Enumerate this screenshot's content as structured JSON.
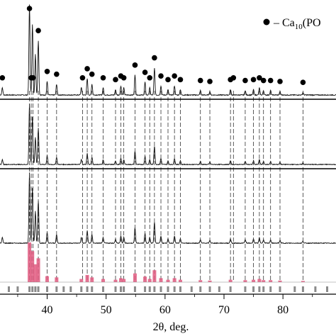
{
  "chart_data": {
    "type": "line",
    "xlabel": "2θ, deg.",
    "xlim": [
      32,
      89
    ],
    "x_ticks": [
      40,
      50,
      60,
      70,
      80
    ],
    "legend": {
      "marker": "●",
      "label": "– Ca",
      "subscript": "10",
      "label_tail": "(PO"
    },
    "peak_positions": [
      37.0,
      37.3,
      37.6,
      38.5,
      40.0,
      41.6,
      46.0,
      46.8,
      47.6,
      49.5,
      51.6,
      52.5,
      53.0,
      54.9,
      56.6,
      57.4,
      58.2,
      59.3,
      60.5,
      61.6,
      62.6,
      66.0,
      67.6,
      71.1,
      71.6,
      73.6,
      75.0,
      76.0,
      76.7,
      77.9,
      79.5,
      83.4
    ],
    "marked_peaks": [
      32.4,
      37.0,
      37.3,
      37.6,
      38.5,
      40.0,
      41.6,
      46.0,
      46.8,
      47.6,
      49.5,
      51.6,
      52.5,
      53.0,
      54.9,
      56.6,
      57.4,
      58.2,
      59.3,
      60.5,
      61.6,
      62.6,
      66.0,
      67.6,
      71.1,
      71.6,
      73.6,
      75.0,
      76.0,
      76.7,
      77.9,
      79.5,
      83.4
    ],
    "reference_bars": [
      {
        "x": 37.0,
        "h": 1.0
      },
      {
        "x": 37.5,
        "h": 0.78
      },
      {
        "x": 38.0,
        "h": 0.45
      },
      {
        "x": 38.5,
        "h": 0.6
      },
      {
        "x": 40.0,
        "h": 0.15
      },
      {
        "x": 41.6,
        "h": 0.12
      },
      {
        "x": 45.8,
        "h": 0.08
      },
      {
        "x": 46.8,
        "h": 0.18
      },
      {
        "x": 47.6,
        "h": 0.12
      },
      {
        "x": 49.5,
        "h": 0.08
      },
      {
        "x": 51.6,
        "h": 0.06
      },
      {
        "x": 52.5,
        "h": 0.1
      },
      {
        "x": 53.0,
        "h": 0.08
      },
      {
        "x": 54.9,
        "h": 0.22
      },
      {
        "x": 56.6,
        "h": 0.14
      },
      {
        "x": 57.4,
        "h": 0.08
      },
      {
        "x": 58.2,
        "h": 0.3
      },
      {
        "x": 59.3,
        "h": 0.1
      },
      {
        "x": 60.5,
        "h": 0.06
      },
      {
        "x": 61.6,
        "h": 0.1
      },
      {
        "x": 62.6,
        "h": 0.06
      },
      {
        "x": 66.0,
        "h": 0.05
      },
      {
        "x": 67.6,
        "h": 0.04
      },
      {
        "x": 71.1,
        "h": 0.06
      },
      {
        "x": 73.6,
        "h": 0.05
      },
      {
        "x": 75.0,
        "h": 0.06
      },
      {
        "x": 76.0,
        "h": 0.08
      },
      {
        "x": 76.7,
        "h": 0.05
      },
      {
        "x": 77.9,
        "h": 0.05
      },
      {
        "x": 79.5,
        "h": 0.04
      },
      {
        "x": 83.4,
        "h": 0.03
      }
    ],
    "grid": false,
    "colors": {
      "reference_bars": "#e05a80",
      "reference_ticks": "#8a8a8a",
      "dashes": "#333333"
    }
  }
}
